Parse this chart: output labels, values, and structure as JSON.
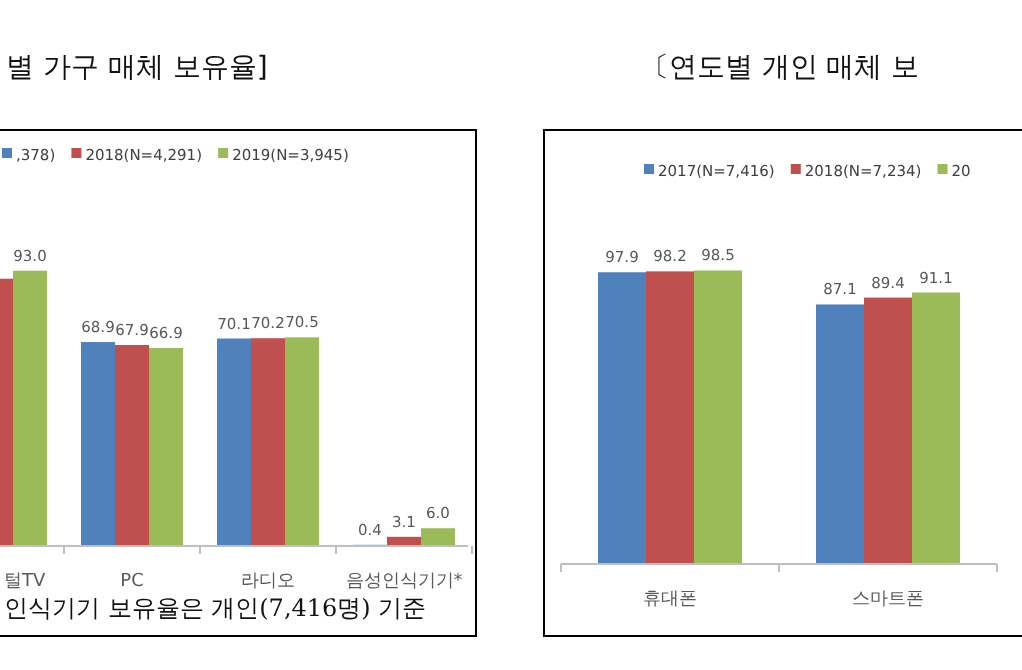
{
  "chart_data": [
    {
      "type": "bar",
      "title": "별 가구 매체 보유율]",
      "legend": "top",
      "categories": [
        "털TV",
        "PC",
        "라디오",
        "음성인식기기*"
      ],
      "series": [
        {
          "name": ",378)",
          "color": "#4f81bd",
          "values": [
            null,
            68.9,
            70.1,
            0.4
          ],
          "value_labels": [
            null,
            "68.9",
            "70.1",
            "0.4"
          ]
        },
        {
          "name": "2018(N=4,291)",
          "color": "#c0504d",
          "values": [
            90.3,
            67.9,
            70.2,
            3.1
          ],
          "value_labels": [
            null,
            "67.9",
            "70.2",
            "3.1"
          ]
        },
        {
          "name": "2019(N=3,945)",
          "color": "#9bbb59",
          "values": [
            93.0,
            66.9,
            70.5,
            6.0
          ],
          "value_labels": [
            "93.0",
            "66.9",
            "70.5",
            "6.0"
          ]
        }
      ],
      "annotations": [
        "인식기기 보유율은 개인(7,416명) 기준"
      ]
    },
    {
      "type": "bar",
      "title": "〔연도별 개인 매체 보",
      "legend": "top",
      "categories": [
        "휴대폰",
        "스마트폰"
      ],
      "data_labels": true,
      "series": [
        {
          "name": "2017(N=7,416)",
          "color": "#4f81bd",
          "values": [
            97.9,
            87.1
          ]
        },
        {
          "name": "2018(N=7,234)",
          "color": "#c0504d",
          "values": [
            98.2,
            89.4
          ]
        },
        {
          "name": "20",
          "color": "#9bbb59",
          "values": [
            98.5,
            91.1
          ]
        }
      ]
    }
  ]
}
